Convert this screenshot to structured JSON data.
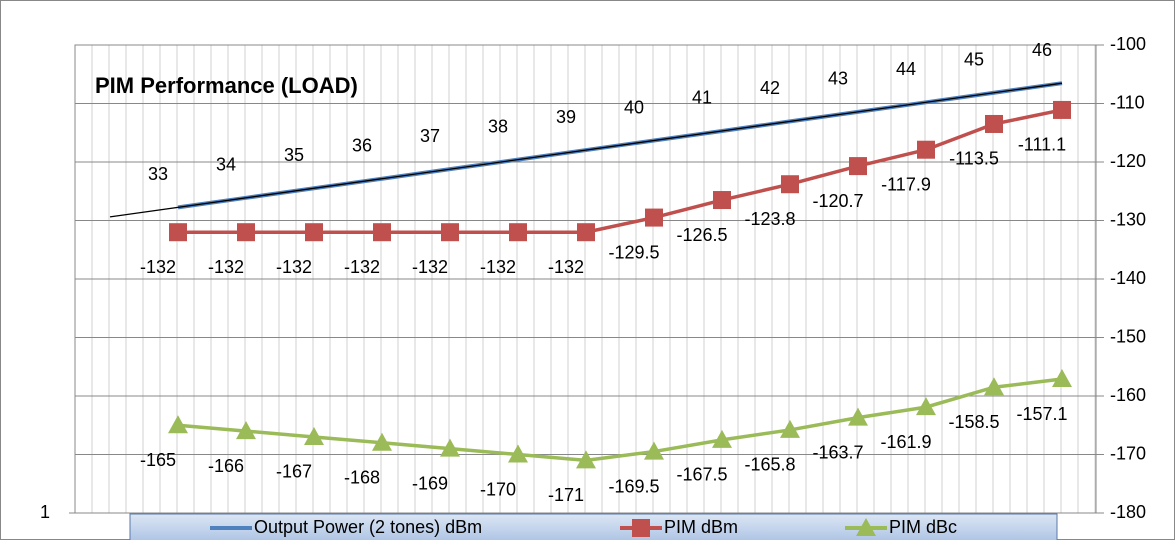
{
  "chart_data": {
    "type": "line",
    "title": "PIM Performance (LOAD)",
    "categories": [
      null,
      null,
      null,
      null,
      null,
      null,
      null,
      null,
      null,
      null,
      null,
      null,
      null,
      null
    ],
    "series": [
      {
        "name": "Output Power (2 tones) dBm",
        "color": "#4f81bd",
        "axis": "y2",
        "values": [
          33,
          34,
          35,
          36,
          37,
          38,
          39,
          40,
          41,
          42,
          43,
          44,
          45,
          46
        ]
      },
      {
        "name": "PIM dBm",
        "color": "#c0504d",
        "values": [
          -132,
          -132,
          -132,
          -132,
          -132,
          -132,
          -132,
          -129.5,
          -126.5,
          -123.8,
          -120.7,
          -117.9,
          -113.5,
          -111.1
        ]
      },
      {
        "name": "PIM dBc",
        "color": "#9bbb59",
        "values": [
          -165,
          -166,
          -167,
          -168,
          -169,
          -170,
          -171,
          -169.5,
          -167.5,
          -165.8,
          -163.7,
          -161.9,
          -158.5,
          -157.1
        ]
      }
    ],
    "ylim": [
      -180,
      -100
    ],
    "yticks": [
      -180,
      -170,
      -160,
      -150,
      -140,
      -130,
      -120,
      -110,
      -100
    ],
    "y2lim": [
      1,
      50
    ],
    "y2ticks": [
      1
    ],
    "grid": true,
    "legend": "bottom"
  }
}
